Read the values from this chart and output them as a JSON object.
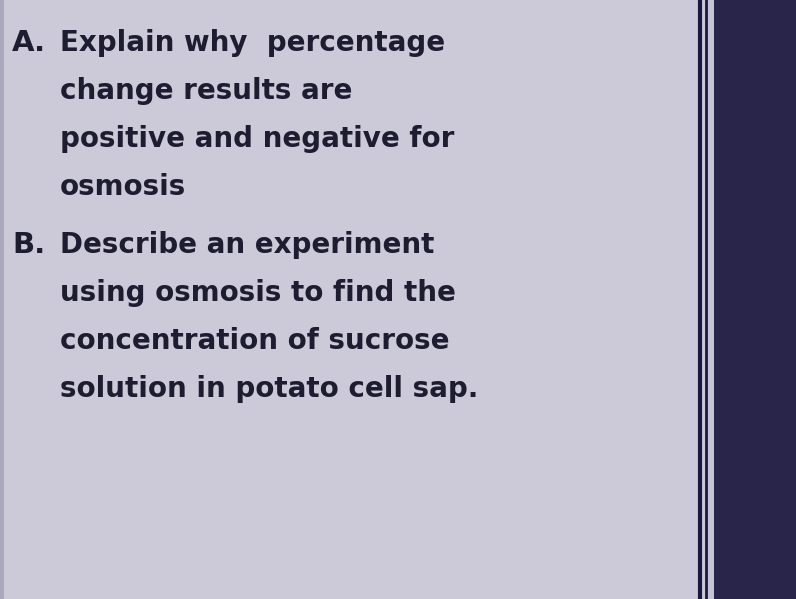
{
  "background_color": "#cccad8",
  "left_strip_color": "#b8b5c8",
  "right_border_inner": "#2a2850",
  "right_border_outer": "#1a1640",
  "right_panel_color": "#9890b8",
  "text_color": "#1e1c30",
  "label_A": "A.",
  "label_B": "B.",
  "line_A1": "Explain why  percentage",
  "line_A2": "change results are",
  "line_A3": "positive and negative for",
  "line_A4": "osmosis",
  "line_B1": "Describe an experiment",
  "line_B2": "using osmosis to find the",
  "line_B3": "concentration of sucrose",
  "line_B4": "solution in potato cell sap.",
  "font_size_main": 20,
  "font_size_label": 21,
  "font_weight": "bold"
}
